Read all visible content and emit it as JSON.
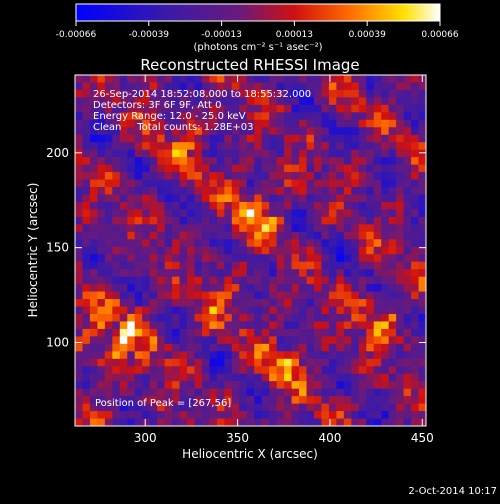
{
  "colorbar": {
    "ticks": [
      "-0.00066",
      "-0.00039",
      "-0.00013",
      "0.00013",
      "0.00039",
      "0.00066"
    ],
    "unit_label": "(photons cm⁻² s⁻¹ asec⁻²)"
  },
  "annotations": {
    "time_range": "26-Sep-2014 18:52:08.000 to 18:55:32.000",
    "detectors": "Detectors: 3F 6F 9F, Att 0",
    "energy_range": "Energy Range: 12.0 - 25.0 keV",
    "method_counts": "Clean     Total counts: 1.28E+03",
    "peak_position": "Position of Peak = [267,56]"
  },
  "footer": {
    "date": "2-Oct-2014 10:17"
  },
  "colors": {
    "background": "#000000",
    "text": "#ffffff"
  },
  "chart_data": {
    "type": "heatmap",
    "title": "Reconstructed RHESSI Image",
    "xlabel": "Heliocentric X (arcsec)",
    "ylabel": "Heliocentric Y (arcsec)",
    "xlim": [
      262,
      452
    ],
    "ylim": [
      56,
      241
    ],
    "xticks": [
      300,
      350,
      400,
      450
    ],
    "yticks": [
      100,
      150,
      200
    ],
    "colorbar_range": [
      -0.00066,
      0.00066
    ],
    "colormap": "blue-purple-red-yellow-white",
    "grid": false
  }
}
